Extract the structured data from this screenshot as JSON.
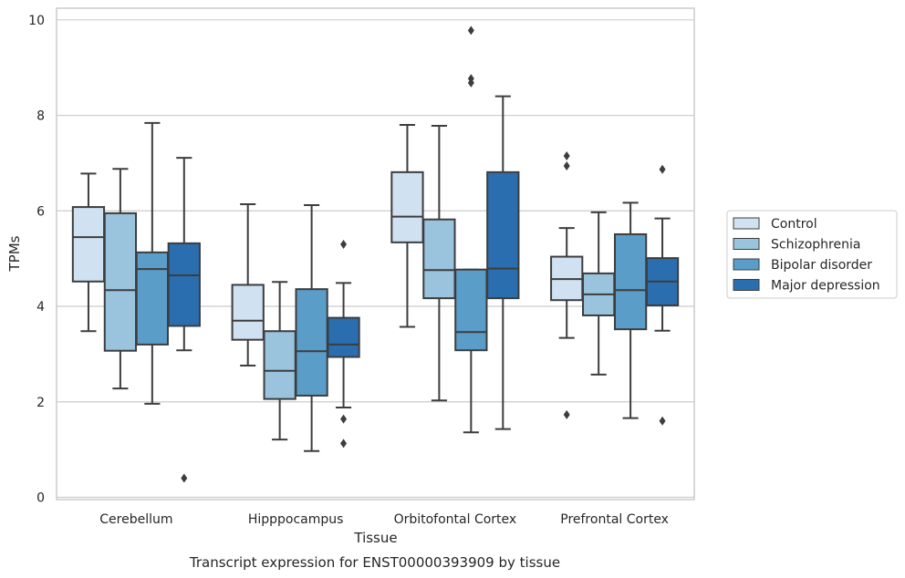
{
  "caption": "Transcript expression for ENST00000393909 by tissue",
  "chart_data": {
    "type": "box",
    "title": "",
    "xlabel": "Tissue",
    "ylabel": "TPMs",
    "ylim": [
      0,
      10.25
    ],
    "yticks": [
      0,
      2,
      4,
      6,
      8,
      10
    ],
    "grid": "horizontal",
    "legend_position": "right",
    "categories": [
      "Cerebellum",
      "Hipppocampus",
      "Orbitofontal Cortex",
      "Prefrontal Cortex"
    ],
    "series": [
      {
        "name": "Control",
        "color": "#d0e1f1",
        "boxes": [
          {
            "whisker_low": 3.48,
            "q1": 4.52,
            "median": 5.45,
            "q3": 6.08,
            "whisker_high": 6.78,
            "outliers": []
          },
          {
            "whisker_low": 2.76,
            "q1": 3.3,
            "median": 3.7,
            "q3": 4.45,
            "whisker_high": 6.14,
            "outliers": []
          },
          {
            "whisker_low": 3.57,
            "q1": 5.34,
            "median": 5.88,
            "q3": 6.81,
            "whisker_high": 7.8,
            "outliers": []
          },
          {
            "whisker_low": 3.34,
            "q1": 4.13,
            "median": 4.57,
            "q3": 5.04,
            "whisker_high": 5.64,
            "outliers": [
              7.15,
              6.94,
              1.73
            ]
          }
        ]
      },
      {
        "name": "Schizophrenia",
        "color": "#9ac3dd",
        "boxes": [
          {
            "whisker_low": 2.28,
            "q1": 3.07,
            "median": 4.34,
            "q3": 5.95,
            "whisker_high": 6.88,
            "outliers": []
          },
          {
            "whisker_low": 1.21,
            "q1": 2.06,
            "median": 2.65,
            "q3": 3.48,
            "whisker_high": 4.51,
            "outliers": []
          },
          {
            "whisker_low": 2.03,
            "q1": 4.17,
            "median": 4.76,
            "q3": 5.82,
            "whisker_high": 7.78,
            "outliers": []
          },
          {
            "whisker_low": 2.57,
            "q1": 3.81,
            "median": 4.25,
            "q3": 4.69,
            "whisker_high": 5.97,
            "outliers": []
          }
        ]
      },
      {
        "name": "Bipolar disorder",
        "color": "#5b9dc9",
        "boxes": [
          {
            "whisker_low": 1.96,
            "q1": 3.2,
            "median": 4.78,
            "q3": 5.13,
            "whisker_high": 7.84,
            "outliers": []
          },
          {
            "whisker_low": 0.97,
            "q1": 2.13,
            "median": 3.06,
            "q3": 4.36,
            "whisker_high": 6.12,
            "outliers": []
          },
          {
            "whisker_low": 1.36,
            "q1": 3.08,
            "median": 3.46,
            "q3": 4.77,
            "whisker_high": 4.77,
            "outliers": [
              9.78,
              8.77,
              8.68
            ]
          },
          {
            "whisker_low": 1.66,
            "q1": 3.52,
            "median": 4.34,
            "q3": 5.51,
            "whisker_high": 6.17,
            "outliers": []
          }
        ]
      },
      {
        "name": "Major depression",
        "color": "#2a6eb0",
        "boxes": [
          {
            "whisker_low": 3.08,
            "q1": 3.59,
            "median": 4.65,
            "q3": 5.32,
            "whisker_high": 7.11,
            "outliers": [
              0.4
            ]
          },
          {
            "whisker_low": 1.88,
            "q1": 2.94,
            "median": 3.2,
            "q3": 3.76,
            "whisker_high": 4.49,
            "outliers": [
              5.3,
              1.64,
              1.13
            ]
          },
          {
            "whisker_low": 1.43,
            "q1": 4.17,
            "median": 4.79,
            "q3": 6.81,
            "whisker_high": 8.4,
            "outliers": []
          },
          {
            "whisker_low": 3.49,
            "q1": 4.02,
            "median": 4.52,
            "q3": 5.01,
            "whisker_high": 5.84,
            "outliers": [
              6.87,
              1.6
            ]
          }
        ]
      }
    ]
  }
}
